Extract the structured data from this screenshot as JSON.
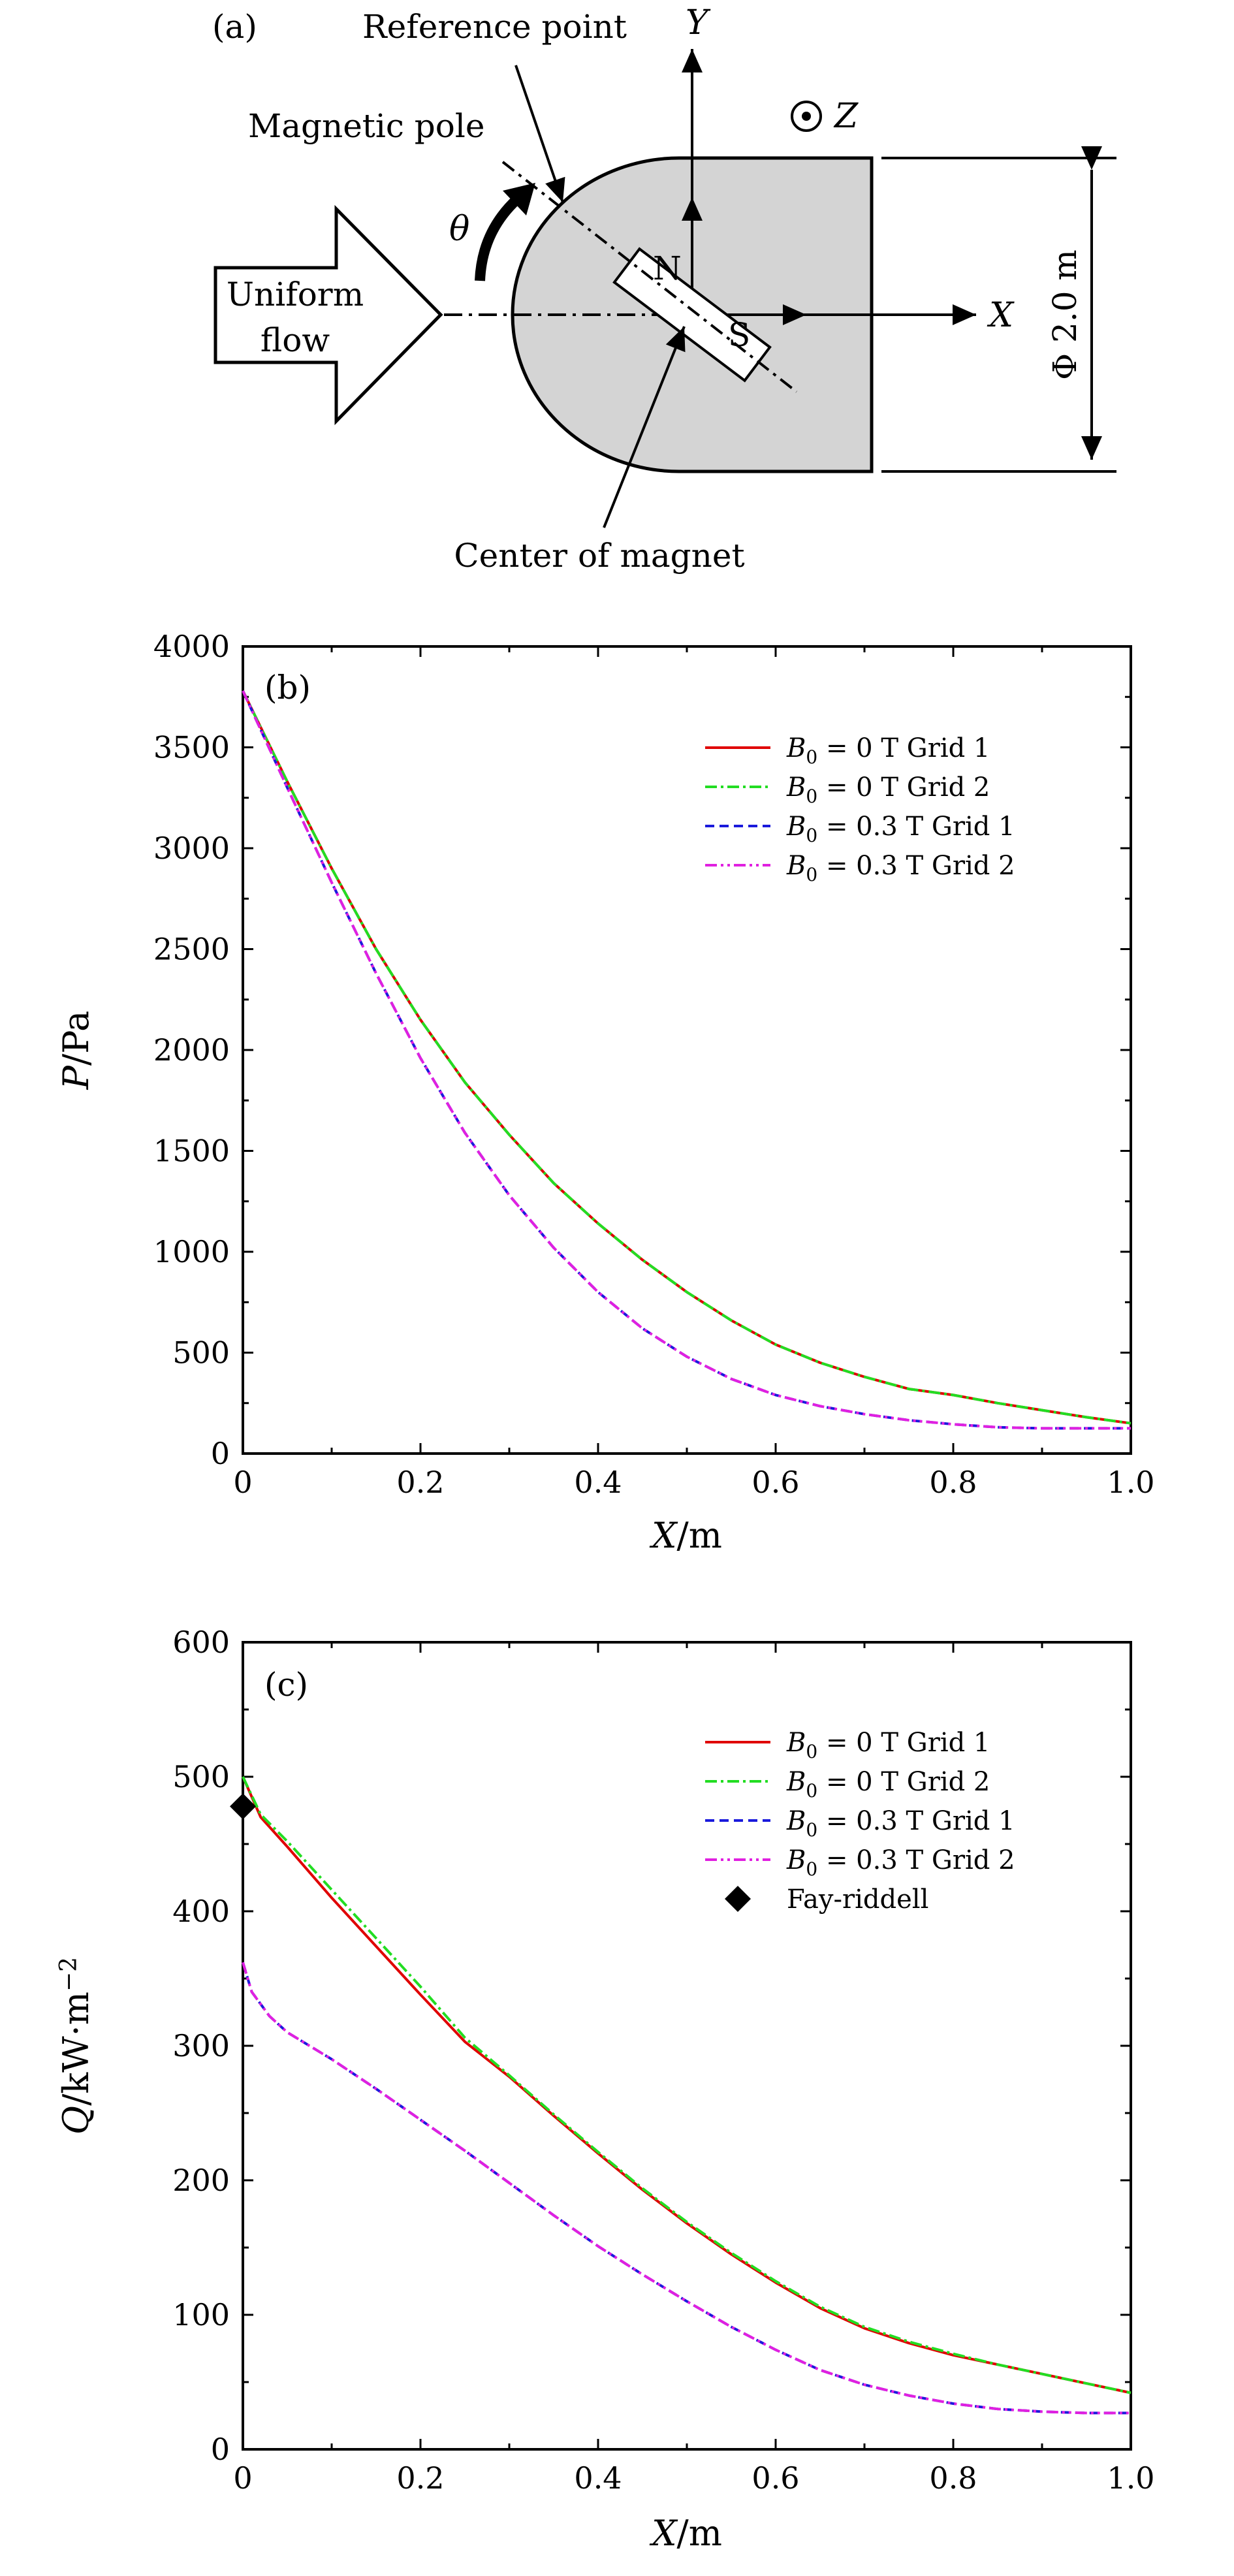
{
  "diagram": {
    "panel_label": "(a)",
    "reference_point": "Reference point",
    "magnetic_pole": "Magnetic pole",
    "theta": "θ",
    "uniform_flow_1": "Uniform",
    "uniform_flow_2": "flow",
    "axis_x": "X",
    "axis_y": "Y",
    "axis_z": "Z",
    "pole_n": "N",
    "pole_s": "S",
    "diameter": "Φ 2.0 m",
    "center_of_magnet": "Center of magnet",
    "colors": {
      "body_fill": "#d4d4d4",
      "stroke": "#000000"
    }
  },
  "chart_data": [
    {
      "type": "line",
      "panel_label": "(b)",
      "xlabel_var": "X",
      "xlabel_unit": "/m",
      "ylabel_var": "P",
      "ylabel_unit": "/Pa",
      "xlim": [
        0,
        1.0
      ],
      "ylim": [
        0,
        4000
      ],
      "xticks": [
        0,
        0.2,
        0.4,
        0.6,
        0.8,
        1.0
      ],
      "xtick_labels": [
        "0",
        "0.2",
        "0.4",
        "0.6",
        "0.8",
        "1.0"
      ],
      "yticks": [
        0,
        500,
        1000,
        1500,
        2000,
        2500,
        3000,
        3500,
        4000
      ],
      "ytick_labels": [
        "0",
        "500",
        "1000",
        "1500",
        "2000",
        "2500",
        "3000",
        "3500",
        "4000"
      ],
      "legend_position": "top-right",
      "series": [
        {
          "name": "B0 = 0 T Grid 1",
          "label_var": "B",
          "label_sub": "0",
          "label_rest": " = 0 T Grid 1",
          "color": "#e00000",
          "dash": "",
          "width": 4,
          "x": [
            0,
            0.05,
            0.1,
            0.15,
            0.2,
            0.25,
            0.3,
            0.35,
            0.4,
            0.45,
            0.5,
            0.55,
            0.6,
            0.65,
            0.7,
            0.75,
            0.8,
            0.85,
            0.9,
            0.95,
            1.0
          ],
          "y": [
            3780,
            3330,
            2900,
            2500,
            2150,
            1840,
            1580,
            1340,
            1140,
            960,
            800,
            660,
            540,
            450,
            380,
            320,
            290,
            250,
            215,
            180,
            150
          ]
        },
        {
          "name": "B0 = 0 T Grid 2",
          "label_var": "B",
          "label_sub": "0",
          "label_rest": " = 0 T Grid 2",
          "color": "#22dd22",
          "dash": "18,6,4,6",
          "width": 4,
          "x": [
            0,
            0.05,
            0.1,
            0.15,
            0.2,
            0.25,
            0.3,
            0.35,
            0.4,
            0.45,
            0.5,
            0.55,
            0.6,
            0.65,
            0.7,
            0.75,
            0.8,
            0.85,
            0.9,
            0.95,
            1.0
          ],
          "y": [
            3780,
            3330,
            2900,
            2500,
            2150,
            1840,
            1580,
            1340,
            1140,
            960,
            800,
            660,
            540,
            450,
            380,
            320,
            290,
            250,
            215,
            180,
            150
          ]
        },
        {
          "name": "B0 = 0.3 T Grid 1",
          "label_var": "B",
          "label_sub": "0",
          "label_rest": " = 0.3 T Grid 1",
          "color": "#1a1adc",
          "dash": "14,8",
          "width": 4,
          "x": [
            0,
            0.05,
            0.1,
            0.15,
            0.2,
            0.25,
            0.3,
            0.35,
            0.4,
            0.45,
            0.5,
            0.55,
            0.6,
            0.65,
            0.7,
            0.75,
            0.8,
            0.85,
            0.9,
            0.95,
            1.0
          ],
          "y": [
            3780,
            3300,
            2830,
            2380,
            1960,
            1590,
            1280,
            1020,
            800,
            620,
            480,
            370,
            290,
            235,
            195,
            165,
            145,
            130,
            125,
            125,
            125
          ]
        },
        {
          "name": "B0 = 0.3 T Grid 2",
          "label_var": "B",
          "label_sub": "0",
          "label_rest": " = 0.3 T Grid 2",
          "color": "#e020e0",
          "dash": "18,6,4,6,4,6",
          "width": 4,
          "x": [
            0,
            0.05,
            0.1,
            0.15,
            0.2,
            0.25,
            0.3,
            0.35,
            0.4,
            0.45,
            0.5,
            0.55,
            0.6,
            0.65,
            0.7,
            0.75,
            0.8,
            0.85,
            0.9,
            0.95,
            1.0
          ],
          "y": [
            3780,
            3300,
            2830,
            2380,
            1960,
            1590,
            1280,
            1020,
            800,
            620,
            480,
            370,
            290,
            235,
            195,
            165,
            145,
            130,
            125,
            125,
            125
          ]
        }
      ]
    },
    {
      "type": "line",
      "panel_label": "(c)",
      "xlabel_var": "X",
      "xlabel_unit": "/m",
      "ylabel_var": "Q",
      "ylabel_unit": "/kW·m",
      "ylabel_sup": "−2",
      "xlim": [
        0,
        1.0
      ],
      "ylim": [
        0,
        600
      ],
      "xticks": [
        0,
        0.2,
        0.4,
        0.6,
        0.8,
        1.0
      ],
      "xtick_labels": [
        "0",
        "0.2",
        "0.4",
        "0.6",
        "0.8",
        "1.0"
      ],
      "yticks": [
        0,
        100,
        200,
        300,
        400,
        500,
        600
      ],
      "ytick_labels": [
        "0",
        "100",
        "200",
        "300",
        "400",
        "500",
        "600"
      ],
      "legend_position": "top-right",
      "series": [
        {
          "name": "B0 = 0 T Grid 1",
          "label_var": "B",
          "label_sub": "0",
          "label_rest": " = 0 T Grid 1",
          "color": "#e00000",
          "dash": "",
          "width": 4,
          "x": [
            0,
            0.02,
            0.05,
            0.1,
            0.15,
            0.2,
            0.25,
            0.3,
            0.35,
            0.4,
            0.45,
            0.5,
            0.55,
            0.6,
            0.65,
            0.7,
            0.75,
            0.8,
            0.85,
            0.9,
            0.95,
            1.0
          ],
          "y": [
            500,
            470,
            448,
            410,
            374,
            338,
            303,
            277,
            248,
            220,
            193,
            168,
            145,
            124,
            105,
            90,
            79,
            70,
            63,
            56,
            49,
            42
          ]
        },
        {
          "name": "B0 = 0 T Grid 2",
          "label_var": "B",
          "label_sub": "0",
          "label_rest": " = 0 T Grid 2",
          "color": "#22dd22",
          "dash": "18,6,4,6",
          "width": 4,
          "x": [
            0,
            0.02,
            0.05,
            0.1,
            0.15,
            0.2,
            0.25,
            0.3,
            0.35,
            0.4,
            0.45,
            0.5,
            0.55,
            0.6,
            0.65,
            0.7,
            0.75,
            0.8,
            0.85,
            0.9,
            0.95,
            1.0
          ],
          "y": [
            500,
            472,
            452,
            416,
            380,
            344,
            306,
            278,
            249,
            221,
            194,
            169,
            146,
            125,
            106,
            91,
            80,
            71,
            63,
            56,
            49,
            42
          ]
        },
        {
          "name": "B0 = 0.3 T Grid 1",
          "label_var": "B",
          "label_sub": "0",
          "label_rest": " = 0.3 T Grid 1",
          "color": "#1a1adc",
          "dash": "14,8",
          "width": 4,
          "x": [
            0,
            0.01,
            0.03,
            0.05,
            0.1,
            0.15,
            0.2,
            0.25,
            0.3,
            0.35,
            0.4,
            0.45,
            0.5,
            0.55,
            0.6,
            0.65,
            0.7,
            0.75,
            0.8,
            0.85,
            0.9,
            0.95,
            1.0
          ],
          "y": [
            362,
            340,
            322,
            310,
            290,
            268,
            245,
            222,
            198,
            174,
            151,
            130,
            110,
            91,
            74,
            59,
            48,
            40,
            34,
            30,
            28,
            27,
            27
          ]
        },
        {
          "name": "B0 = 0.3 T Grid 2",
          "label_var": "B",
          "label_sub": "0",
          "label_rest": " = 0.3 T Grid 2",
          "color": "#e020e0",
          "dash": "18,6,4,6,4,6",
          "width": 4,
          "x": [
            0,
            0.01,
            0.03,
            0.05,
            0.1,
            0.15,
            0.2,
            0.25,
            0.3,
            0.35,
            0.4,
            0.45,
            0.5,
            0.55,
            0.6,
            0.65,
            0.7,
            0.75,
            0.8,
            0.85,
            0.9,
            0.95,
            1.0
          ],
          "y": [
            362,
            340,
            322,
            310,
            290,
            268,
            245,
            222,
            198,
            174,
            151,
            130,
            110,
            91,
            74,
            59,
            48,
            40,
            34,
            30,
            28,
            27,
            27
          ]
        }
      ],
      "points": [
        {
          "name": "Fay-riddell",
          "marker": "diamond",
          "color": "#000000",
          "x": 0,
          "y": 478
        }
      ]
    }
  ]
}
